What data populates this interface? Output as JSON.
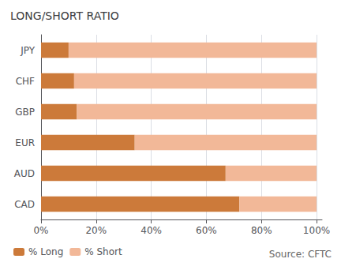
{
  "chart_data": {
    "type": "bar",
    "orientation": "horizontal",
    "stacked": true,
    "title": "LONG/SHORT RATIO",
    "categories": [
      "JPY",
      "CHF",
      "GBP",
      "EUR",
      "AUD",
      "CAD"
    ],
    "series": [
      {
        "name": "% Long",
        "color": "#CC7A3A",
        "values": [
          10,
          12,
          13,
          34,
          67,
          72
        ]
      },
      {
        "name": "% Short",
        "color": "#F2B898",
        "values": [
          90,
          88,
          87,
          66,
          33,
          28
        ]
      }
    ],
    "xlim": [
      0,
      102
    ],
    "xticks": [
      {
        "value": 0,
        "label": "0%"
      },
      {
        "value": 20,
        "label": "20%"
      },
      {
        "value": 40,
        "label": "40%"
      },
      {
        "value": 60,
        "label": "60%"
      },
      {
        "value": 80,
        "label": "80%"
      },
      {
        "value": 100,
        "label": "100%"
      }
    ],
    "grid": true,
    "legend": "bottom",
    "annotations": [
      "Source: CFTC"
    ]
  }
}
